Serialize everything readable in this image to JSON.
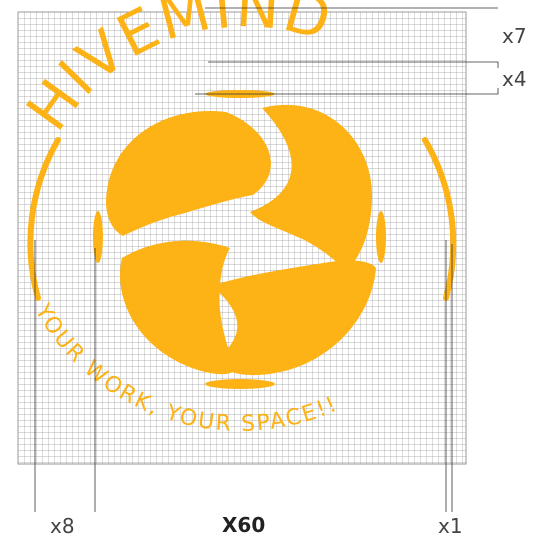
{
  "brand": {
    "name": "HIVEMIND",
    "tagline": "YOUR WORK, YOUR SPACE!!"
  },
  "colors": {
    "brand_orange": "#FDB216",
    "grid_line": "#9a9a9a",
    "leader_line": "#333333",
    "label_text": "#444444"
  },
  "callouts": {
    "x7": "x7",
    "x4": "x4",
    "x8": "x8",
    "x1": "x1",
    "center": "X60"
  },
  "icons": [
    "hive-swirl-icon"
  ]
}
